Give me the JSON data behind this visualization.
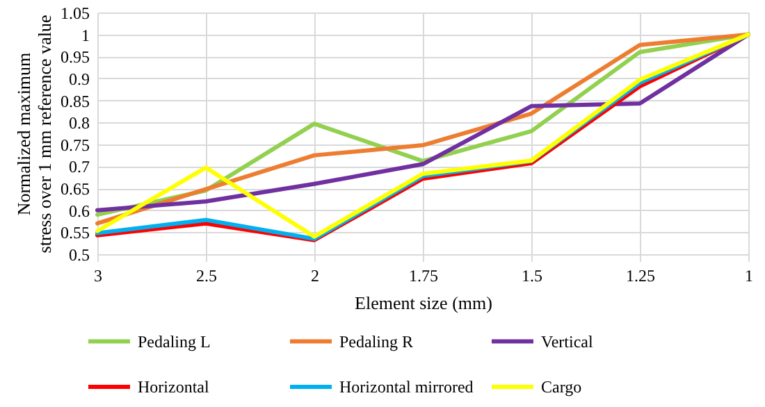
{
  "chart_data": {
    "type": "line",
    "xlabel": "Element size (mm)",
    "ylabel": "Normalized maximum stress over 1 mm reference value",
    "categories": [
      "3",
      "2.5",
      "2",
      "1.75",
      "1.5",
      "1.25",
      "1"
    ],
    "ylim": [
      0.5,
      1.05
    ],
    "yticks": [
      0.5,
      0.55,
      0.6,
      0.65,
      0.7,
      0.75,
      0.8,
      0.85,
      0.9,
      0.95,
      1,
      1.05
    ],
    "grid": true,
    "legend": "bottom",
    "marker": "none",
    "line_style": "solid",
    "series": [
      {
        "name": "Pedaling L",
        "color": "#92d050",
        "values": [
          0.59,
          0.645,
          0.797,
          0.712,
          0.78,
          0.96,
          1.0
        ]
      },
      {
        "name": "Pedaling R",
        "color": "#ed7d31",
        "values": [
          0.57,
          0.648,
          0.725,
          0.748,
          0.82,
          0.976,
          1.0
        ]
      },
      {
        "name": "Vertical",
        "color": "#7030a0",
        "values": [
          0.6,
          0.62,
          0.66,
          0.705,
          0.837,
          0.843,
          1.0
        ]
      },
      {
        "name": "Horizontal",
        "color": "#ff0000",
        "values": [
          0.543,
          0.57,
          0.532,
          0.672,
          0.707,
          0.882,
          1.0
        ]
      },
      {
        "name": "Horizontal mirrored",
        "color": "#00b0f0",
        "values": [
          0.548,
          0.578,
          0.535,
          0.678,
          0.712,
          0.89,
          1.0
        ]
      },
      {
        "name": "Cargo",
        "color": "#ffff00",
        "values": [
          0.553,
          0.697,
          0.54,
          0.683,
          0.713,
          0.897,
          1.0
        ]
      }
    ]
  }
}
